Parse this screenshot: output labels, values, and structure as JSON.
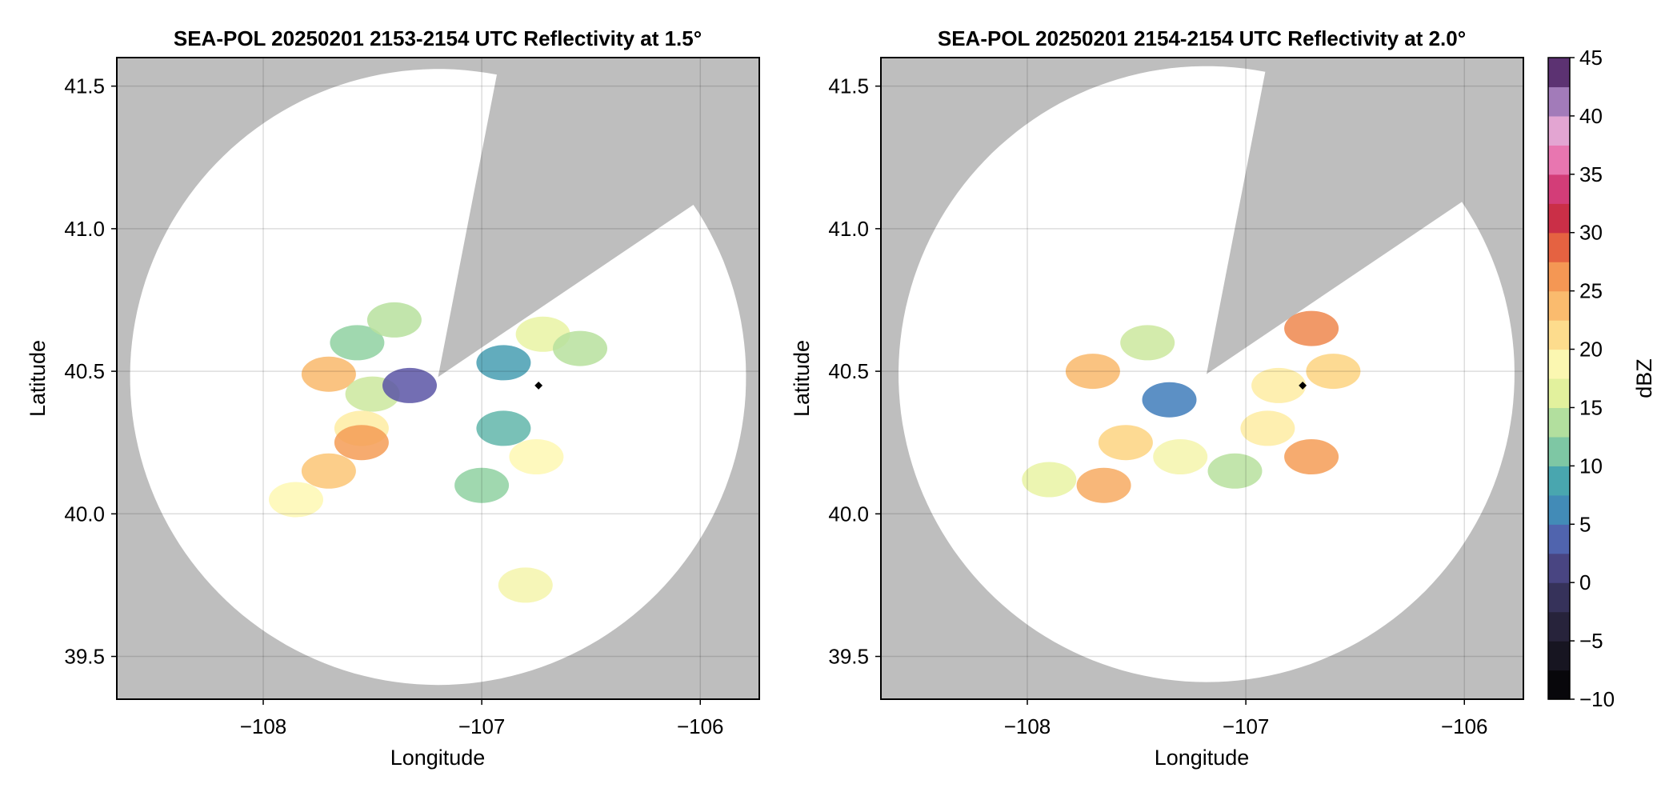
{
  "chart_data": [
    {
      "type": "heatmap",
      "title": "SEA-POL 20250201 2153-2154 UTC Reflectivity at 1.5°",
      "xlabel": "Longitude",
      "ylabel": "Latitude",
      "xlim": [
        -108.67,
        -105.73
      ],
      "ylim": [
        39.35,
        41.6
      ],
      "xticks": [
        -108,
        -107,
        -106
      ],
      "xtick_labels": [
        "−108",
        "−107",
        "−106"
      ],
      "yticks": [
        39.5,
        40.0,
        40.5,
        41.0,
        41.5
      ],
      "ytick_labels": [
        "39.5",
        "40.0",
        "40.5",
        "41.0",
        "41.5"
      ],
      "grid": true,
      "background_color": "#bebebe",
      "coverage_color": "#ffffff",
      "radar_site": {
        "lon": -107.2,
        "lat": 40.48
      },
      "coverage_radius_deg_lat": 1.08,
      "blocked_sector_bearing_deg": [
        11,
        56
      ],
      "marker": {
        "lon": -106.74,
        "lat": 40.45
      },
      "echoes": [
        {
          "lon": -107.57,
          "lat": 40.6,
          "dbz": 12
        },
        {
          "lon": -107.4,
          "lat": 40.68,
          "dbz": 14
        },
        {
          "lon": -107.7,
          "lat": 40.49,
          "dbz": 24
        },
        {
          "lon": -107.5,
          "lat": 40.42,
          "dbz": 15
        },
        {
          "lon": -107.33,
          "lat": 40.45,
          "dbz": 3
        },
        {
          "lon": -107.55,
          "lat": 40.3,
          "dbz": 20
        },
        {
          "lon": -107.7,
          "lat": 40.15,
          "dbz": 23
        },
        {
          "lon": -107.85,
          "lat": 40.05,
          "dbz": 19
        },
        {
          "lon": -107.55,
          "lat": 40.25,
          "dbz": 26
        },
        {
          "lon": -106.72,
          "lat": 40.63,
          "dbz": 17
        },
        {
          "lon": -106.55,
          "lat": 40.58,
          "dbz": 14
        },
        {
          "lon": -106.9,
          "lat": 40.53,
          "dbz": 8
        },
        {
          "lon": -106.9,
          "lat": 40.3,
          "dbz": 10
        },
        {
          "lon": -106.75,
          "lat": 40.2,
          "dbz": 19
        },
        {
          "lon": -107.0,
          "lat": 40.1,
          "dbz": 12
        },
        {
          "lon": -106.8,
          "lat": 39.75,
          "dbz": 18
        }
      ]
    },
    {
      "type": "heatmap",
      "title": "SEA-POL 20250201 2154-2154 UTC Reflectivity at 2.0°",
      "xlabel": "Longitude",
      "ylabel": "Latitude",
      "xlim": [
        -108.67,
        -105.73
      ],
      "ylim": [
        39.35,
        41.6
      ],
      "xticks": [
        -108,
        -107,
        -106
      ],
      "xtick_labels": [
        "−108",
        "−107",
        "−106"
      ],
      "yticks": [
        39.5,
        40.0,
        40.5,
        41.0,
        41.5
      ],
      "ytick_labels": [
        "39.5",
        "40.0",
        "40.5",
        "41.0",
        "41.5"
      ],
      "grid": true,
      "background_color": "#bebebe",
      "coverage_color": "#ffffff",
      "radar_site": {
        "lon": -107.18,
        "lat": 40.49
      },
      "coverage_radius_deg_lat": 1.08,
      "blocked_sector_bearing_deg": [
        11,
        56
      ],
      "marker": {
        "lon": -106.74,
        "lat": 40.45
      },
      "echoes": [
        {
          "lon": -107.45,
          "lat": 40.6,
          "dbz": 15
        },
        {
          "lon": -107.7,
          "lat": 40.5,
          "dbz": 24
        },
        {
          "lon": -107.35,
          "lat": 40.4,
          "dbz": 5
        },
        {
          "lon": -107.55,
          "lat": 40.25,
          "dbz": 22
        },
        {
          "lon": -107.65,
          "lat": 40.1,
          "dbz": 25
        },
        {
          "lon": -107.9,
          "lat": 40.12,
          "dbz": 17
        },
        {
          "lon": -107.3,
          "lat": 40.2,
          "dbz": 18
        },
        {
          "lon": -106.7,
          "lat": 40.65,
          "dbz": 27
        },
        {
          "lon": -106.6,
          "lat": 40.5,
          "dbz": 22
        },
        {
          "lon": -106.85,
          "lat": 40.45,
          "dbz": 20
        },
        {
          "lon": -106.7,
          "lat": 40.2,
          "dbz": 26
        },
        {
          "lon": -106.9,
          "lat": 40.3,
          "dbz": 20
        },
        {
          "lon": -107.05,
          "lat": 40.15,
          "dbz": 14
        }
      ]
    }
  ],
  "colorbar": {
    "label": "dBZ",
    "range": [
      -10,
      45
    ],
    "ticks": [
      -10,
      -5,
      0,
      5,
      10,
      15,
      20,
      25,
      30,
      35,
      40,
      45
    ],
    "tick_labels": [
      "−10",
      "−5",
      "0",
      "5",
      "10",
      "15",
      "20",
      "25",
      "30",
      "35",
      "40",
      "45"
    ],
    "colormap_stops": [
      {
        "v": -10,
        "color": "#000000"
      },
      {
        "v": -5,
        "color": "#1f1c2c"
      },
      {
        "v": 0,
        "color": "#3d3969"
      },
      {
        "v": 3,
        "color": "#5a55a6"
      },
      {
        "v": 5,
        "color": "#3f7dbb"
      },
      {
        "v": 9,
        "color": "#4aa9ae"
      },
      {
        "v": 12,
        "color": "#8fd1a1"
      },
      {
        "v": 16,
        "color": "#dff09b"
      },
      {
        "v": 19,
        "color": "#fef8b3"
      },
      {
        "v": 22,
        "color": "#fdd380"
      },
      {
        "v": 26,
        "color": "#f59c56"
      },
      {
        "v": 29,
        "color": "#e35d3f"
      },
      {
        "v": 32,
        "color": "#c11f49"
      },
      {
        "v": 35,
        "color": "#e0539a"
      },
      {
        "v": 38,
        "color": "#f3a6cf"
      },
      {
        "v": 40,
        "color": "#c9a3d8"
      },
      {
        "v": 42,
        "color": "#8b63a6"
      },
      {
        "v": 45,
        "color": "#3b0f4c"
      }
    ]
  }
}
